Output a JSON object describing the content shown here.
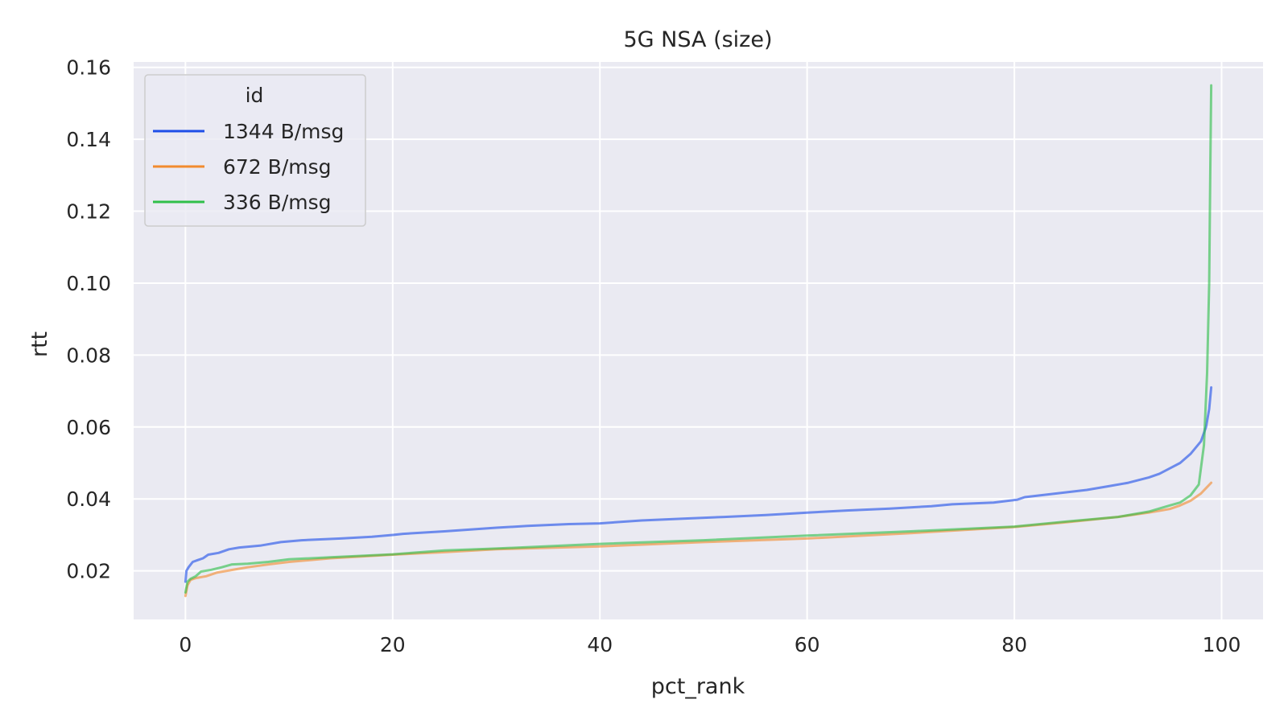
{
  "chart_data": {
    "type": "line",
    "title": "5G NSA (size)",
    "xlabel": "pct_rank",
    "ylabel": "rtt",
    "xlim": [
      -5,
      104
    ],
    "ylim": [
      0.0065,
      0.1615
    ],
    "xticks": [
      0,
      20,
      40,
      60,
      80,
      100
    ],
    "xtick_labels": [
      "0",
      "20",
      "40",
      "60",
      "80",
      "100"
    ],
    "yticks": [
      0.02,
      0.04,
      0.06,
      0.08,
      0.1,
      0.12,
      0.14,
      0.16
    ],
    "ytick_labels": [
      "0.02",
      "0.04",
      "0.06",
      "0.08",
      "0.10",
      "0.12",
      "0.14",
      "0.16"
    ],
    "grid": true,
    "legend": {
      "title": "id",
      "position": "top-left"
    },
    "series": [
      {
        "name": "1344 B/msg",
        "color": "#1f4fe8",
        "x": [
          0,
          0.1,
          0.3,
          0.7,
          1.2,
          1.7,
          2.2,
          3.2,
          4.2,
          5.2,
          7.2,
          9.2,
          11.2,
          15,
          18,
          20.1,
          21,
          25,
          30,
          33,
          37,
          40,
          44,
          48,
          52,
          56,
          60,
          64,
          68,
          72,
          74,
          78,
          80.3,
          81,
          84,
          87,
          89,
          91,
          93,
          94,
          95,
          96,
          97,
          98,
          98.5,
          98.8,
          99
        ],
        "y": [
          0.017,
          0.02,
          0.021,
          0.0225,
          0.023,
          0.0235,
          0.0245,
          0.025,
          0.026,
          0.0265,
          0.027,
          0.028,
          0.0285,
          0.029,
          0.0295,
          0.03,
          0.0303,
          0.031,
          0.032,
          0.0325,
          0.033,
          0.0332,
          0.034,
          0.0345,
          0.035,
          0.0355,
          0.0362,
          0.0368,
          0.0373,
          0.038,
          0.0385,
          0.039,
          0.0398,
          0.0405,
          0.0415,
          0.0425,
          0.0435,
          0.0445,
          0.046,
          0.047,
          0.0485,
          0.05,
          0.0525,
          0.056,
          0.06,
          0.065,
          0.071
        ]
      },
      {
        "name": "672 B/msg",
        "color": "#f28b2e",
        "x": [
          0,
          0.2,
          0.5,
          1,
          2,
          3,
          4,
          5,
          6,
          8,
          10,
          14,
          20,
          25,
          30,
          40,
          50,
          60,
          70,
          80,
          85,
          90,
          93,
          95,
          96,
          97,
          98,
          98.5,
          99
        ],
        "y": [
          0.013,
          0.016,
          0.0175,
          0.018,
          0.0185,
          0.0195,
          0.02,
          0.0205,
          0.021,
          0.0218,
          0.0225,
          0.0235,
          0.0245,
          0.0252,
          0.026,
          0.0268,
          0.028,
          0.029,
          0.0305,
          0.0322,
          0.0335,
          0.035,
          0.0362,
          0.0372,
          0.0382,
          0.0395,
          0.0415,
          0.043,
          0.0445
        ]
      },
      {
        "name": "336 B/msg",
        "color": "#2fbf4a",
        "x": [
          0,
          0.2,
          0.5,
          1,
          1.5,
          2.5,
          3.5,
          4.5,
          6,
          8,
          10,
          14,
          20,
          25,
          30,
          40,
          50,
          60,
          70,
          80,
          85,
          90,
          93,
          95,
          96,
          97,
          97.8,
          98.3,
          98.6,
          98.8,
          98.9,
          99
        ],
        "y": [
          0.014,
          0.017,
          0.0178,
          0.0185,
          0.0198,
          0.0203,
          0.021,
          0.0218,
          0.022,
          0.0225,
          0.0232,
          0.0238,
          0.0246,
          0.0257,
          0.0262,
          0.0275,
          0.0285,
          0.0298,
          0.031,
          0.0323,
          0.0337,
          0.035,
          0.0365,
          0.0382,
          0.039,
          0.041,
          0.044,
          0.055,
          0.075,
          0.1,
          0.13,
          0.155
        ]
      }
    ]
  }
}
